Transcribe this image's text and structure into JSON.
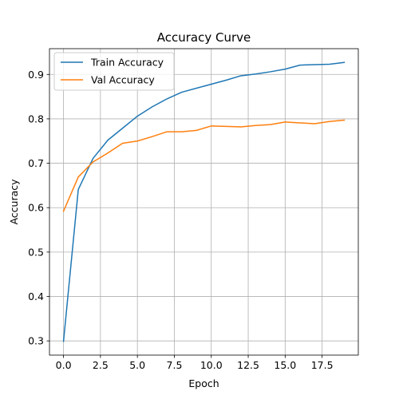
{
  "chart_data": {
    "type": "line",
    "title": "Accuracy Curve",
    "xlabel": "Epoch",
    "ylabel": "Accuracy",
    "xlim": [
      -0.95,
      19.95
    ],
    "ylim": [
      0.268,
      0.958
    ],
    "xticks": [
      0,
      2.5,
      5,
      7.5,
      10,
      12.5,
      15,
      17.5
    ],
    "xtick_labels": [
      "0.0",
      "2.5",
      "5.0",
      "7.5",
      "10.0",
      "12.5",
      "15.0",
      "17.5"
    ],
    "yticks": [
      0.3,
      0.4,
      0.5,
      0.6,
      0.7,
      0.8,
      0.9
    ],
    "ytick_labels": [
      "0.3",
      "0.4",
      "0.5",
      "0.6",
      "0.7",
      "0.8",
      "0.9"
    ],
    "grid": true,
    "legend_position": "upper-left",
    "x": [
      0,
      1,
      2,
      3,
      4,
      5,
      6,
      7,
      8,
      9,
      10,
      11,
      12,
      13,
      14,
      15,
      16,
      17,
      18,
      19
    ],
    "series": [
      {
        "name": "Train Accuracy",
        "color": "#1f77b4",
        "values": [
          0.299,
          0.641,
          0.711,
          0.752,
          0.779,
          0.806,
          0.827,
          0.845,
          0.86,
          0.869,
          0.878,
          0.887,
          0.897,
          0.901,
          0.906,
          0.912,
          0.921,
          0.922,
          0.923,
          0.927
        ]
      },
      {
        "name": "Val Accuracy",
        "color": "#ff7f0e",
        "values": [
          0.592,
          0.669,
          0.703,
          0.723,
          0.745,
          0.75,
          0.76,
          0.771,
          0.771,
          0.774,
          0.784,
          0.783,
          0.782,
          0.785,
          0.787,
          0.793,
          0.791,
          0.789,
          0.794,
          0.797
        ]
      }
    ]
  }
}
